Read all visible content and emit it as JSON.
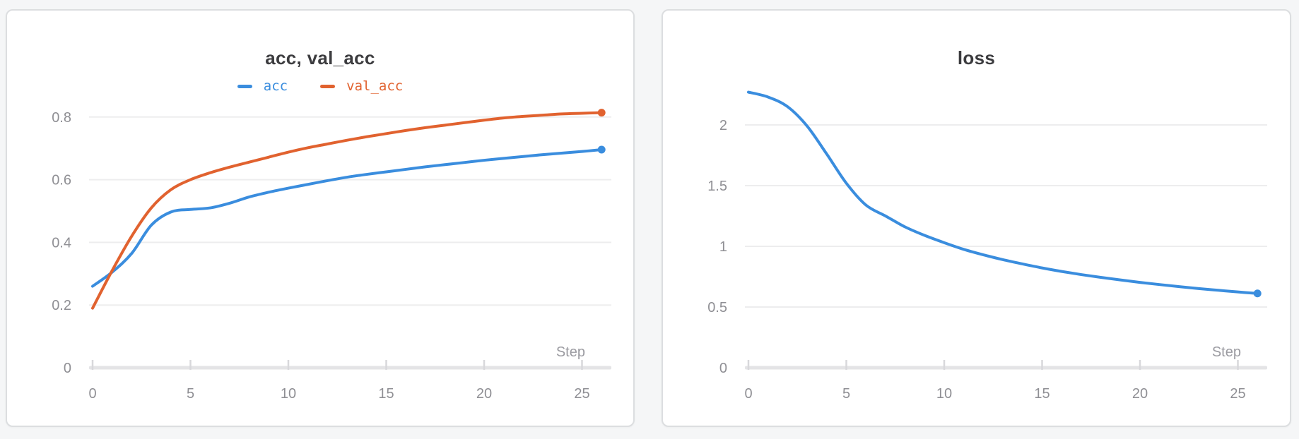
{
  "page": {
    "background": "#f5f6f7",
    "card_background": "#ffffff",
    "card_border": "#dcdee0"
  },
  "colors": {
    "blue_series": "#3a8dde",
    "orange_series": "#e1622f",
    "title_text": "#3c3c3f",
    "tick_text": "#8f8f94",
    "axis_label_text": "#9b9ba1",
    "gridline": "#ededee",
    "axis_bar": "#e4e4e6",
    "tick_mark": "#d8d8db"
  },
  "chart_data": [
    {
      "type": "line",
      "title": "acc, val_acc",
      "xlabel": "Step",
      "x_ticks": [
        0,
        5,
        10,
        15,
        20,
        25
      ],
      "y_ticks": [
        0,
        0.2,
        0.4,
        0.6,
        0.8
      ],
      "xlim": [
        0,
        26
      ],
      "ylim": [
        0,
        0.9
      ],
      "grid": true,
      "legend_position": "top-center",
      "x": [
        0,
        1,
        2,
        3,
        4,
        5,
        6,
        7,
        8,
        9,
        10,
        11,
        12,
        13,
        14,
        15,
        16,
        17,
        18,
        19,
        20,
        21,
        22,
        23,
        24,
        25,
        26
      ],
      "series": [
        {
          "name": "acc",
          "color": "#3a8dde",
          "end_marker": true,
          "values": [
            0.26,
            0.305,
            0.365,
            0.455,
            0.497,
            0.505,
            0.51,
            0.525,
            0.545,
            0.56,
            0.573,
            0.585,
            0.597,
            0.608,
            0.617,
            0.625,
            0.633,
            0.641,
            0.648,
            0.655,
            0.662,
            0.668,
            0.674,
            0.68,
            0.685,
            0.69,
            0.696
          ]
        },
        {
          "name": "val_acc",
          "color": "#e1622f",
          "end_marker": true,
          "values": [
            0.19,
            0.31,
            0.42,
            0.51,
            0.568,
            0.6,
            0.622,
            0.64,
            0.656,
            0.672,
            0.688,
            0.702,
            0.714,
            0.726,
            0.737,
            0.747,
            0.757,
            0.766,
            0.774,
            0.782,
            0.79,
            0.797,
            0.802,
            0.806,
            0.81,
            0.812,
            0.814
          ]
        }
      ]
    },
    {
      "type": "line",
      "title": "loss",
      "xlabel": "Step",
      "x_ticks": [
        0,
        5,
        10,
        15,
        20,
        25
      ],
      "y_ticks": [
        0,
        0.5,
        1,
        1.5,
        2
      ],
      "xlim": [
        0,
        26
      ],
      "ylim": [
        0,
        2.3
      ],
      "grid": true,
      "legend_position": "none",
      "x": [
        0,
        1,
        2,
        3,
        4,
        5,
        6,
        7,
        8,
        9,
        10,
        11,
        12,
        13,
        14,
        15,
        16,
        17,
        18,
        19,
        20,
        21,
        22,
        23,
        24,
        25,
        26
      ],
      "series": [
        {
          "name": "loss",
          "color": "#3a8dde",
          "end_marker": true,
          "values": [
            2.27,
            2.23,
            2.15,
            1.99,
            1.76,
            1.52,
            1.34,
            1.25,
            1.16,
            1.09,
            1.03,
            0.975,
            0.93,
            0.89,
            0.855,
            0.822,
            0.793,
            0.767,
            0.744,
            0.723,
            0.703,
            0.685,
            0.668,
            0.652,
            0.638,
            0.624,
            0.612
          ]
        }
      ]
    }
  ]
}
